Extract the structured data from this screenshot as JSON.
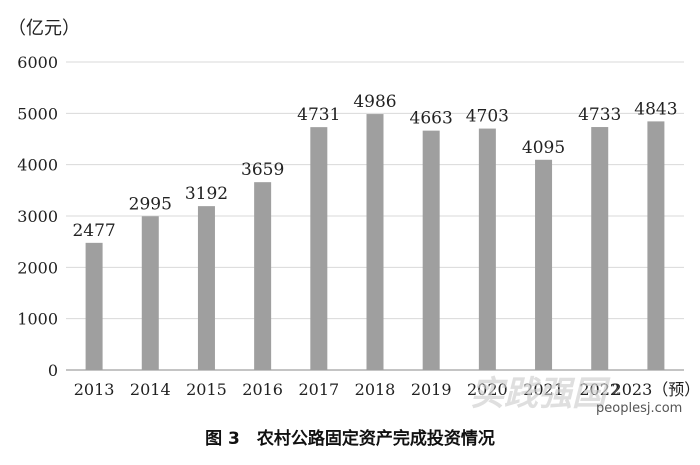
{
  "chart_data": {
    "type": "bar",
    "unit_label": "（亿元）",
    "categories": [
      "2013",
      "2014",
      "2015",
      "2016",
      "2017",
      "2018",
      "2019",
      "2020",
      "2021",
      "2022",
      "2023（预）"
    ],
    "values": [
      2477,
      2995,
      3192,
      3659,
      4731,
      4986,
      4663,
      4703,
      4095,
      4733,
      4843
    ],
    "ylim": [
      0,
      6000
    ],
    "yticks": [
      "0",
      "1000",
      "2000",
      "3000",
      "4000",
      "5000",
      "6000"
    ],
    "grid": true,
    "legend": "none"
  },
  "caption": "图 3　农村公路固定资产完成投资情况",
  "watermark": {
    "logo_text": "实践强国",
    "site": "peoplesj.com"
  },
  "colors": {
    "bar": "#9f9f9f",
    "grid": "#d9d9d9"
  }
}
